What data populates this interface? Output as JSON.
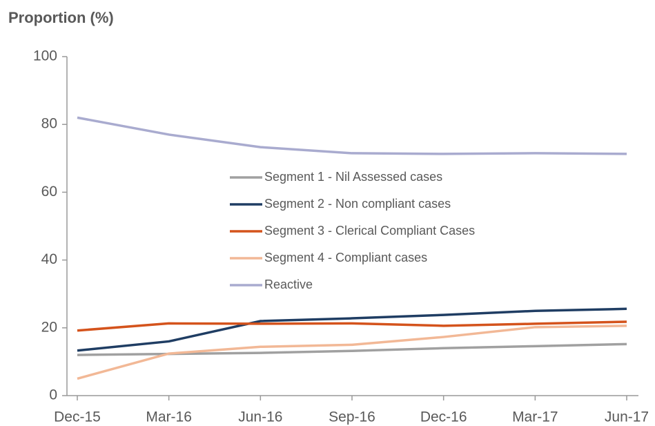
{
  "chart_data": {
    "type": "line",
    "title": "Proportion (%)",
    "categories": [
      "Dec-15",
      "Mar-16",
      "Jun-16",
      "Sep-16",
      "Dec-16",
      "Mar-17",
      "Jun-17"
    ],
    "series": [
      {
        "name": "Segment 1 - Nil Assessed cases",
        "color": "#a0a0a0",
        "values": [
          12,
          12.3,
          12.6,
          13.2,
          14,
          14.6,
          15.2
        ]
      },
      {
        "name": "Segment 2 - Non compliant cases",
        "color": "#1f3d63",
        "values": [
          13.3,
          16,
          22,
          22.8,
          23.8,
          25,
          25.6
        ]
      },
      {
        "name": "Segment 3 - Clerical Compliant Cases",
        "color": "#d4531c",
        "values": [
          19.2,
          21.3,
          21.2,
          21.3,
          20.6,
          21.2,
          21.8
        ]
      },
      {
        "name": "Segment 4 - Compliant cases",
        "color": "#f2b896",
        "values": [
          5,
          12.4,
          14.4,
          15,
          17.3,
          20.2,
          20.6
        ]
      },
      {
        "name": "Reactive",
        "color": "#a9abcf",
        "values": [
          82,
          77,
          73.3,
          71.5,
          71.3,
          71.5,
          71.3
        ]
      }
    ],
    "ylim": [
      0,
      100
    ],
    "yticks": [
      0,
      20,
      40,
      60,
      80,
      100
    ],
    "legend": "center"
  }
}
